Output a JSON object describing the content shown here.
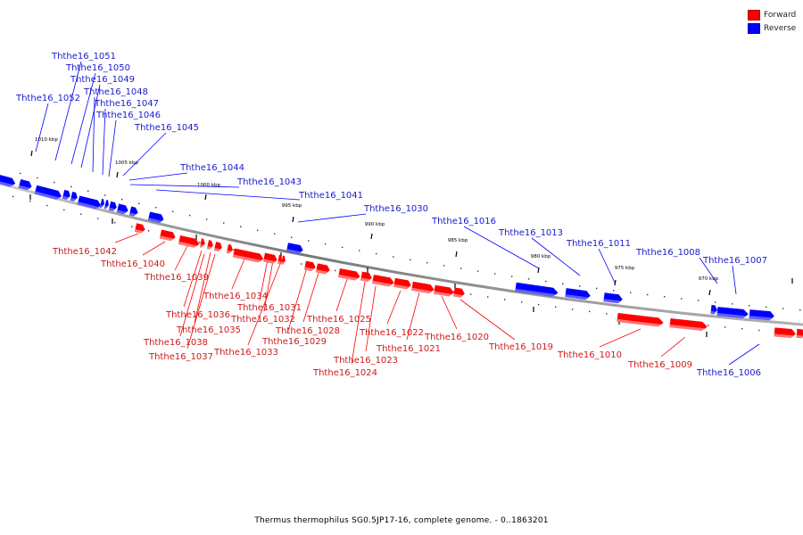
{
  "caption": "Thermus thermophilus SG0.5JP17-16, complete genome. - 0..1863201",
  "legend": [
    {
      "label": "Forward",
      "color": "#ff0000"
    },
    {
      "label": "Reverse",
      "color": "#0000ff"
    }
  ],
  "colors": {
    "forward": "#ff0000",
    "reverse": "#0000ff",
    "backbone": "#8a8a8a"
  },
  "ticks": [
    {
      "label": "1010 kbp"
    },
    {
      "label": "1005 kbp"
    },
    {
      "label": "1000 kbp"
    },
    {
      "label": "995 kbp"
    },
    {
      "label": "990 kbp"
    },
    {
      "label": "985 kbp"
    },
    {
      "label": "980 kbp"
    },
    {
      "label": "975 kbp"
    },
    {
      "label": "970 kbp"
    }
  ],
  "genes": [
    {
      "id": "Ththe16_1052",
      "strand": "reverse"
    },
    {
      "id": "Ththe16_1051",
      "strand": "reverse"
    },
    {
      "id": "Ththe16_1050",
      "strand": "reverse"
    },
    {
      "id": "Ththe16_1049",
      "strand": "reverse"
    },
    {
      "id": "Ththe16_1048",
      "strand": "reverse"
    },
    {
      "id": "Ththe16_1047",
      "strand": "reverse"
    },
    {
      "id": "Ththe16_1046",
      "strand": "reverse"
    },
    {
      "id": "Ththe16_1045",
      "strand": "reverse"
    },
    {
      "id": "Ththe16_1044",
      "strand": "reverse"
    },
    {
      "id": "Ththe16_1043",
      "strand": "reverse"
    },
    {
      "id": "Ththe16_1041",
      "strand": "reverse"
    },
    {
      "id": "Ththe16_1030",
      "strand": "reverse"
    },
    {
      "id": "Ththe16_1016",
      "strand": "reverse"
    },
    {
      "id": "Ththe16_1013",
      "strand": "reverse"
    },
    {
      "id": "Ththe16_1011",
      "strand": "reverse"
    },
    {
      "id": "Ththe16_1008",
      "strand": "reverse"
    },
    {
      "id": "Ththe16_1007",
      "strand": "reverse"
    },
    {
      "id": "Ththe16_1006",
      "strand": "reverse"
    },
    {
      "id": "Ththe16_1042",
      "strand": "forward"
    },
    {
      "id": "Ththe16_1040",
      "strand": "forward"
    },
    {
      "id": "Ththe16_1039",
      "strand": "forward"
    },
    {
      "id": "Ththe16_1036",
      "strand": "forward"
    },
    {
      "id": "Ththe16_1035",
      "strand": "forward"
    },
    {
      "id": "Ththe16_1034",
      "strand": "forward"
    },
    {
      "id": "Ththe16_1038",
      "strand": "forward"
    },
    {
      "id": "Ththe16_1037",
      "strand": "forward"
    },
    {
      "id": "Ththe16_1031",
      "strand": "forward"
    },
    {
      "id": "Ththe16_1032",
      "strand": "forward"
    },
    {
      "id": "Ththe16_1033",
      "strand": "forward"
    },
    {
      "id": "Ththe16_1029",
      "strand": "forward"
    },
    {
      "id": "Ththe16_1028",
      "strand": "forward"
    },
    {
      "id": "Ththe16_1025",
      "strand": "forward"
    },
    {
      "id": "Ththe16_1022",
      "strand": "forward"
    },
    {
      "id": "Ththe16_1021",
      "strand": "forward"
    },
    {
      "id": "Ththe16_1023",
      "strand": "forward"
    },
    {
      "id": "Ththe16_1024",
      "strand": "forward"
    },
    {
      "id": "Ththe16_1020",
      "strand": "forward"
    },
    {
      "id": "Ththe16_1019",
      "strand": "forward"
    },
    {
      "id": "Ththe16_1010",
      "strand": "forward"
    },
    {
      "id": "Ththe16_1009",
      "strand": "forward"
    }
  ]
}
